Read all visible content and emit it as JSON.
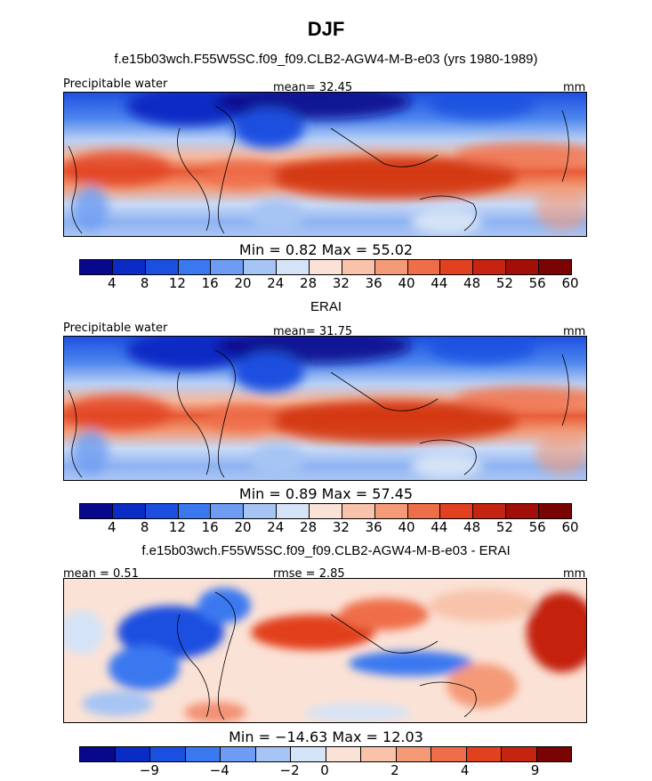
{
  "title": "DJF",
  "panels": [
    {
      "title": "f.e15b03wch.F55W5SC.f09_f09.CLB2-AGW4-M-B-e03 (yrs 1980-1989)",
      "left_label": "Precipitable water",
      "center_label": "mean=  32.45",
      "right_label": "mm",
      "minmax": "Min =    0.82 Max =   55.02",
      "kind": "abs",
      "tick_labels": [
        "4",
        "8",
        "12",
        "16",
        "20",
        "24",
        "28",
        "32",
        "36",
        "40",
        "44",
        "48",
        "52",
        "56",
        "60"
      ]
    },
    {
      "title": "ERAI",
      "left_label": "Precipitable water",
      "center_label": "mean=  31.75",
      "right_label": "mm",
      "minmax": "Min =    0.89 Max =   57.45",
      "kind": "abs",
      "tick_labels": [
        "4",
        "8",
        "12",
        "16",
        "20",
        "24",
        "28",
        "32",
        "36",
        "40",
        "44",
        "48",
        "52",
        "56",
        "60"
      ]
    },
    {
      "title": "f.e15b03wch.F55W5SC.f09_f09.CLB2-AGW4-M-B-e03 - ERAI",
      "left_label": "mean =    0.51",
      "center_label": "rmse =    2.85",
      "right_label": "mm",
      "minmax": "Min = −14.63 Max =   12.03",
      "kind": "diff",
      "tick_labels": [
        "−9",
        "−4",
        "−2",
        "0",
        "2",
        "4",
        "9"
      ]
    }
  ],
  "colorbar_abs": [
    "#08088c",
    "#0a2cc4",
    "#1b4fe0",
    "#3a78f0",
    "#6d9cf2",
    "#a6c4f4",
    "#d5e3f6",
    "#fbe2d6",
    "#f8c3aa",
    "#f49a77",
    "#ef6e4a",
    "#e2411f",
    "#c42410",
    "#a10f08",
    "#7a0404"
  ],
  "colorbar_diff": [
    "#08088c",
    "#0a2cc4",
    "#1b4fe0",
    "#3a78f0",
    "#6d9cf2",
    "#a6c4f4",
    "#d5e3f6",
    "#fbe2d6",
    "#f8c3aa",
    "#f49a77",
    "#ef6e4a",
    "#e2411f",
    "#c42410",
    "#7a0404"
  ]
}
